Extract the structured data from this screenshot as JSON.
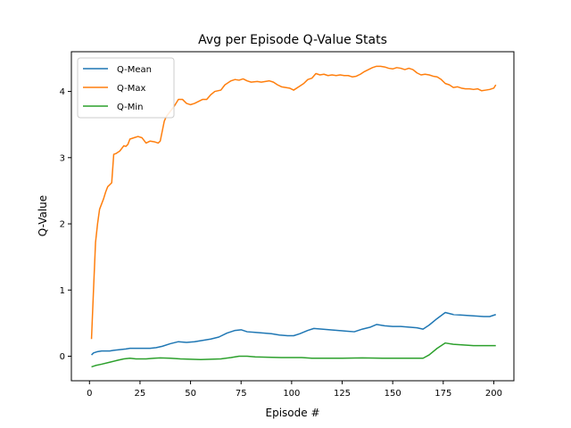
{
  "chart_data": {
    "type": "line",
    "title": "Avg per Episode Q-Value Stats",
    "xlabel": "Episode #",
    "ylabel": "Q-Value",
    "xlim": [
      -8.95,
      209.95
    ],
    "ylim": [
      -0.37,
      4.6
    ],
    "xticks": [
      0,
      25,
      50,
      75,
      100,
      125,
      150,
      175,
      200
    ],
    "yticks": [
      0,
      1,
      2,
      3,
      4
    ],
    "grid": false,
    "legend": "top-left",
    "series": [
      {
        "name": "Q-Mean",
        "color": "#1f77b4",
        "points": [
          [
            1,
            0.02
          ],
          [
            2,
            0.05
          ],
          [
            4,
            0.07
          ],
          [
            6,
            0.08
          ],
          [
            10,
            0.08
          ],
          [
            12,
            0.09
          ],
          [
            15,
            0.1
          ],
          [
            18,
            0.11
          ],
          [
            20,
            0.12
          ],
          [
            25,
            0.12
          ],
          [
            30,
            0.12
          ],
          [
            33,
            0.13
          ],
          [
            36,
            0.15
          ],
          [
            40,
            0.19
          ],
          [
            44,
            0.22
          ],
          [
            48,
            0.21
          ],
          [
            52,
            0.22
          ],
          [
            56,
            0.24
          ],
          [
            60,
            0.26
          ],
          [
            64,
            0.29
          ],
          [
            68,
            0.35
          ],
          [
            72,
            0.39
          ],
          [
            75,
            0.4
          ],
          [
            78,
            0.37
          ],
          [
            82,
            0.36
          ],
          [
            86,
            0.35
          ],
          [
            90,
            0.34
          ],
          [
            94,
            0.32
          ],
          [
            98,
            0.31
          ],
          [
            101,
            0.31
          ],
          [
            104,
            0.34
          ],
          [
            108,
            0.39
          ],
          [
            111,
            0.42
          ],
          [
            115,
            0.41
          ],
          [
            119,
            0.4
          ],
          [
            123,
            0.39
          ],
          [
            127,
            0.38
          ],
          [
            131,
            0.37
          ],
          [
            135,
            0.41
          ],
          [
            139,
            0.44
          ],
          [
            142,
            0.48
          ],
          [
            146,
            0.46
          ],
          [
            150,
            0.45
          ],
          [
            154,
            0.45
          ],
          [
            158,
            0.44
          ],
          [
            162,
            0.43
          ],
          [
            165,
            0.41
          ],
          [
            168,
            0.47
          ],
          [
            172,
            0.57
          ],
          [
            176,
            0.66
          ],
          [
            180,
            0.63
          ],
          [
            185,
            0.62
          ],
          [
            190,
            0.61
          ],
          [
            195,
            0.6
          ],
          [
            198,
            0.6
          ],
          [
            201,
            0.63
          ]
        ]
      },
      {
        "name": "Q-Max",
        "color": "#ff7f0e",
        "points": [
          [
            1,
            0.26
          ],
          [
            2,
            1
          ],
          [
            3,
            1.72
          ],
          [
            4,
            2
          ],
          [
            5,
            2.22
          ],
          [
            7,
            2.38
          ],
          [
            8,
            2.48
          ],
          [
            9,
            2.56
          ],
          [
            11,
            2.62
          ],
          [
            12,
            3.05
          ],
          [
            13,
            3.06
          ],
          [
            15,
            3.1
          ],
          [
            16,
            3.14
          ],
          [
            17,
            3.18
          ],
          [
            18,
            3.17
          ],
          [
            19,
            3.2
          ],
          [
            20,
            3.28
          ],
          [
            22,
            3.3
          ],
          [
            24,
            3.32
          ],
          [
            26,
            3.3
          ],
          [
            28,
            3.22
          ],
          [
            30,
            3.25
          ],
          [
            32,
            3.24
          ],
          [
            34,
            3.22
          ],
          [
            35,
            3.25
          ],
          [
            36,
            3.4
          ],
          [
            37,
            3.55
          ],
          [
            38,
            3.62
          ],
          [
            40,
            3.7
          ],
          [
            42,
            3.78
          ],
          [
            44,
            3.88
          ],
          [
            46,
            3.88
          ],
          [
            48,
            3.82
          ],
          [
            50,
            3.8
          ],
          [
            52,
            3.82
          ],
          [
            54,
            3.85
          ],
          [
            56,
            3.88
          ],
          [
            58,
            3.88
          ],
          [
            60,
            3.95
          ],
          [
            62,
            4
          ],
          [
            65,
            4.02
          ],
          [
            67,
            4.1
          ],
          [
            70,
            4.16
          ],
          [
            72,
            4.18
          ],
          [
            74,
            4.17
          ],
          [
            76,
            4.19
          ],
          [
            78,
            4.16
          ],
          [
            80,
            4.14
          ],
          [
            83,
            4.15
          ],
          [
            85,
            4.14
          ],
          [
            87,
            4.15
          ],
          [
            89,
            4.16
          ],
          [
            91,
            4.14
          ],
          [
            93,
            4.1
          ],
          [
            95,
            4.07
          ],
          [
            97,
            4.06
          ],
          [
            99,
            4.05
          ],
          [
            101,
            4.02
          ],
          [
            104,
            4.08
          ],
          [
            106,
            4.12
          ],
          [
            108,
            4.18
          ],
          [
            110,
            4.2
          ],
          [
            112,
            4.27
          ],
          [
            114,
            4.25
          ],
          [
            116,
            4.26
          ],
          [
            118,
            4.24
          ],
          [
            120,
            4.25
          ],
          [
            122,
            4.24
          ],
          [
            124,
            4.25
          ],
          [
            126,
            4.24
          ],
          [
            128,
            4.24
          ],
          [
            130,
            4.22
          ],
          [
            132,
            4.23
          ],
          [
            134,
            4.26
          ],
          [
            136,
            4.3
          ],
          [
            138,
            4.33
          ],
          [
            140,
            4.36
          ],
          [
            142,
            4.38
          ],
          [
            144,
            4.38
          ],
          [
            146,
            4.37
          ],
          [
            148,
            4.35
          ],
          [
            150,
            4.34
          ],
          [
            152,
            4.36
          ],
          [
            154,
            4.35
          ],
          [
            156,
            4.33
          ],
          [
            158,
            4.35
          ],
          [
            160,
            4.33
          ],
          [
            162,
            4.28
          ],
          [
            164,
            4.25
          ],
          [
            166,
            4.26
          ],
          [
            168,
            4.25
          ],
          [
            170,
            4.23
          ],
          [
            172,
            4.22
          ],
          [
            174,
            4.18
          ],
          [
            176,
            4.12
          ],
          [
            178,
            4.1
          ],
          [
            180,
            4.06
          ],
          [
            182,
            4.07
          ],
          [
            184,
            4.05
          ],
          [
            186,
            4.04
          ],
          [
            188,
            4.04
          ],
          [
            190,
            4.03
          ],
          [
            192,
            4.04
          ],
          [
            194,
            4.01
          ],
          [
            196,
            4.02
          ],
          [
            198,
            4.03
          ],
          [
            200,
            4.05
          ],
          [
            201,
            4.1
          ]
        ]
      },
      {
        "name": "Q-Min",
        "color": "#2ca02c",
        "points": [
          [
            1,
            -0.16
          ],
          [
            3,
            -0.14
          ],
          [
            6,
            -0.12
          ],
          [
            10,
            -0.09
          ],
          [
            14,
            -0.06
          ],
          [
            17,
            -0.04
          ],
          [
            20,
            -0.03
          ],
          [
            23,
            -0.04
          ],
          [
            28,
            -0.04
          ],
          [
            32,
            -0.03
          ],
          [
            35,
            -0.025
          ],
          [
            40,
            -0.03
          ],
          [
            45,
            -0.04
          ],
          [
            50,
            -0.045
          ],
          [
            55,
            -0.05
          ],
          [
            60,
            -0.045
          ],
          [
            65,
            -0.04
          ],
          [
            70,
            -0.02
          ],
          [
            74,
            0
          ],
          [
            78,
            0
          ],
          [
            82,
            -0.01
          ],
          [
            88,
            -0.015
          ],
          [
            95,
            -0.02
          ],
          [
            105,
            -0.02
          ],
          [
            110,
            -0.03
          ],
          [
            115,
            -0.03
          ],
          [
            125,
            -0.03
          ],
          [
            135,
            -0.025
          ],
          [
            145,
            -0.03
          ],
          [
            155,
            -0.03
          ],
          [
            160,
            -0.03
          ],
          [
            165,
            -0.03
          ],
          [
            168,
            0.02
          ],
          [
            172,
            0.12
          ],
          [
            176,
            0.2
          ],
          [
            180,
            0.18
          ],
          [
            185,
            0.17
          ],
          [
            190,
            0.16
          ],
          [
            195,
            0.16
          ],
          [
            201,
            0.16
          ]
        ]
      }
    ]
  }
}
